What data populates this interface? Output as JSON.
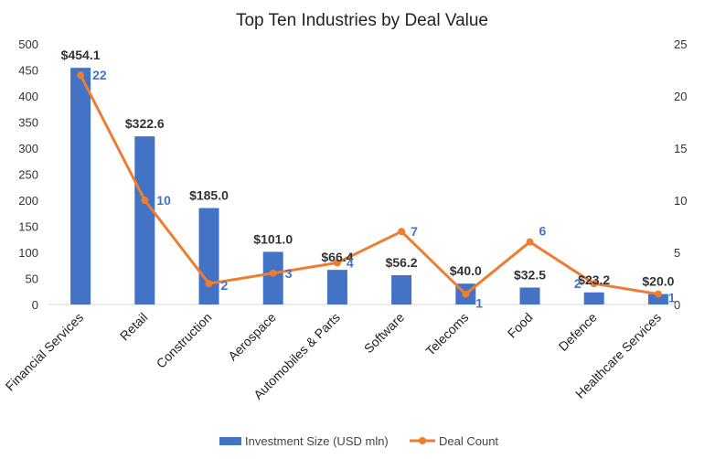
{
  "chart_data": {
    "type": "bar",
    "title": "Top Ten Industries by Deal Value",
    "categories": [
      "Financial Services",
      "Retail",
      "Construction",
      "Aerospace",
      "Automobiles & Parts",
      "Software",
      "Telecoms",
      "Food",
      "Defence",
      "Healthcare Services"
    ],
    "series": [
      {
        "name": "Investment Size (USD mln)",
        "type": "bar",
        "axis": "left",
        "color": "#4472C4",
        "values": [
          454.1,
          322.6,
          185.0,
          101.0,
          66.4,
          56.2,
          40.0,
          32.5,
          23.2,
          20.0
        ],
        "labels": [
          "$454.1",
          "$322.6",
          "$185.0",
          "$101.0",
          "$66.4",
          "$56.2",
          "$40.0",
          "$32.5",
          "$23.2",
          "$20.0"
        ]
      },
      {
        "name": "Deal Count",
        "type": "line",
        "axis": "right",
        "color": "#ED7D31",
        "values": [
          22,
          10,
          2,
          3,
          4,
          7,
          1,
          6,
          2,
          1
        ],
        "labels": [
          "22",
          "10",
          "2",
          "3",
          "4",
          "7",
          "1",
          "6",
          "2",
          "1"
        ]
      }
    ],
    "y_left": {
      "min": 0,
      "max": 500,
      "ticks": [
        0,
        50,
        100,
        150,
        200,
        250,
        300,
        350,
        400,
        450,
        500
      ]
    },
    "y_right": {
      "min": 0,
      "max": 25,
      "ticks": [
        0,
        5,
        10,
        15,
        20,
        25
      ]
    },
    "grid": false,
    "legend": "bottom"
  }
}
